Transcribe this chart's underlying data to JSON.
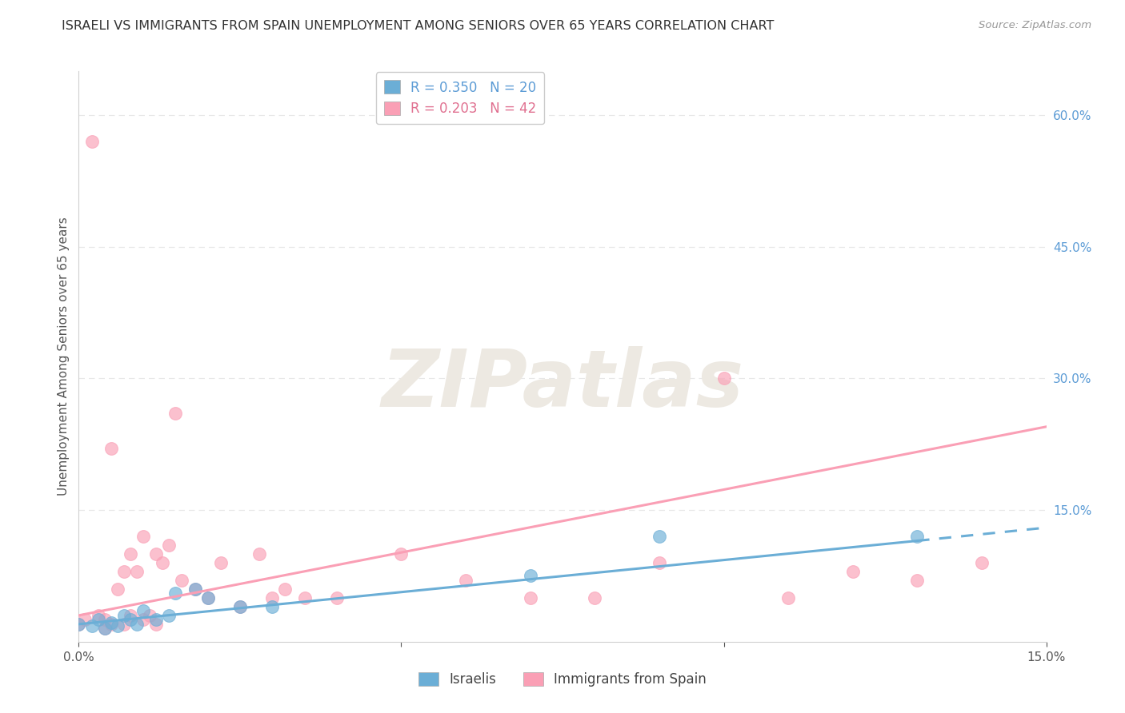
{
  "title": "ISRAELI VS IMMIGRANTS FROM SPAIN UNEMPLOYMENT AMONG SENIORS OVER 65 YEARS CORRELATION CHART",
  "source": "Source: ZipAtlas.com",
  "ylabel": "Unemployment Among Seniors over 65 years",
  "xlim": [
    0.0,
    0.15
  ],
  "ylim": [
    0.0,
    0.65
  ],
  "xticks": [
    0.0,
    0.05,
    0.1,
    0.15
  ],
  "xtick_labels": [
    "0.0%",
    "",
    "",
    "15.0%"
  ],
  "yticks_right": [
    0.0,
    0.15,
    0.3,
    0.45,
    0.6
  ],
  "ytick_labels_right": [
    "",
    "15.0%",
    "30.0%",
    "45.0%",
    "60.0%"
  ],
  "israelis_scatter_x": [
    0.0,
    0.002,
    0.003,
    0.004,
    0.005,
    0.006,
    0.007,
    0.008,
    0.009,
    0.01,
    0.012,
    0.014,
    0.015,
    0.018,
    0.02,
    0.025,
    0.03,
    0.07,
    0.09,
    0.13
  ],
  "israelis_scatter_y": [
    0.02,
    0.018,
    0.025,
    0.015,
    0.022,
    0.018,
    0.03,
    0.025,
    0.02,
    0.035,
    0.025,
    0.03,
    0.055,
    0.06,
    0.05,
    0.04,
    0.04,
    0.075,
    0.12,
    0.12
  ],
  "spain_scatter_x": [
    0.0,
    0.001,
    0.002,
    0.003,
    0.004,
    0.004,
    0.005,
    0.005,
    0.006,
    0.007,
    0.007,
    0.008,
    0.008,
    0.009,
    0.01,
    0.01,
    0.011,
    0.012,
    0.012,
    0.013,
    0.014,
    0.015,
    0.016,
    0.018,
    0.02,
    0.022,
    0.025,
    0.028,
    0.03,
    0.032,
    0.035,
    0.04,
    0.05,
    0.06,
    0.07,
    0.08,
    0.09,
    0.1,
    0.11,
    0.12,
    0.13,
    0.14
  ],
  "spain_scatter_y": [
    0.02,
    0.025,
    0.57,
    0.03,
    0.025,
    0.015,
    0.22,
    0.02,
    0.06,
    0.08,
    0.02,
    0.1,
    0.03,
    0.08,
    0.12,
    0.025,
    0.03,
    0.1,
    0.02,
    0.09,
    0.11,
    0.26,
    0.07,
    0.06,
    0.05,
    0.09,
    0.04,
    0.1,
    0.05,
    0.06,
    0.05,
    0.05,
    0.1,
    0.07,
    0.05,
    0.05,
    0.09,
    0.3,
    0.05,
    0.08,
    0.07,
    0.09
  ],
  "israelis_color": "#6baed6",
  "spain_color": "#fa9fb5",
  "israelis_line_color": "#6baed6",
  "spain_line_color": "#fa9fb5",
  "isr_line_x0": 0.0,
  "isr_line_y0": 0.02,
  "isr_line_x1": 0.13,
  "isr_line_y1": 0.115,
  "isr_line_x1_dash": 0.15,
  "isr_line_y1_dash": 0.13,
  "sp_line_x0": 0.0,
  "sp_line_y0": 0.03,
  "sp_line_x1": 0.15,
  "sp_line_y1": 0.245,
  "watermark": "ZIPatlas",
  "watermark_color": "#ede9e2",
  "background_color": "#ffffff",
  "grid_color": "#e8e8e8",
  "legend_R_israelis": "R = 0.350",
  "legend_N_israelis": "N = 20",
  "legend_R_spain": "R = 0.203",
  "legend_N_spain": "N = 42",
  "title_fontsize": 11.5,
  "axis_label_fontsize": 11,
  "tick_fontsize": 11,
  "legend_fontsize": 12
}
